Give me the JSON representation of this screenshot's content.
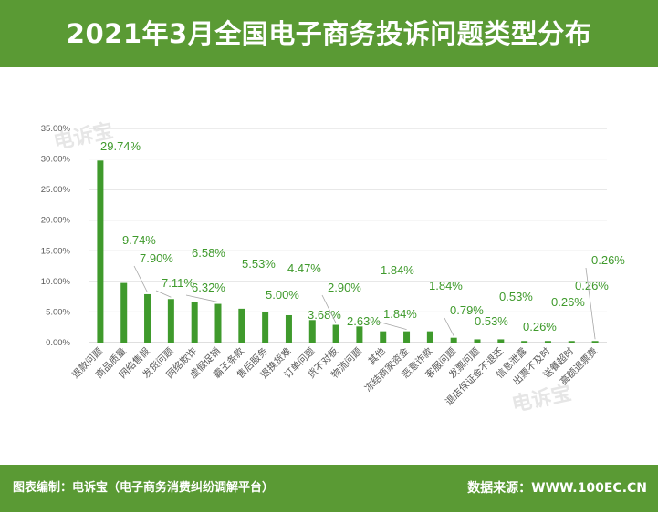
{
  "title": "2021年3月全国电子商务投诉问题类型分布",
  "footer": {
    "left": "图表编制：电诉宝（电子商务消费纠纷调解平台）",
    "right": "数据来源：WWW.100EC.CN"
  },
  "watermark": "电诉宝",
  "colors": {
    "bar": "#3f9a2c",
    "label": "#3f9a2c",
    "header": "#5a9a34",
    "grid": "#d9d9d9"
  },
  "chart_data": {
    "type": "bar",
    "categories": [
      "退款问题",
      "商品质量",
      "网络售假",
      "发货问题",
      "网络欺诈",
      "虚假促销",
      "霸王条款",
      "售后服务",
      "退换货难",
      "订单问题",
      "货不对板",
      "物流问题",
      "其他",
      "冻结商家资金",
      "恶意诈款",
      "客服问题",
      "发票问题",
      "退店保证金不退还",
      "信息泄露",
      "出票不及时",
      "送餐超时",
      "高额退票费"
    ],
    "values": [
      29.74,
      9.74,
      7.9,
      7.11,
      6.58,
      6.32,
      5.53,
      5.0,
      4.47,
      3.68,
      2.9,
      2.63,
      1.84,
      1.84,
      1.84,
      0.79,
      0.53,
      0.53,
      0.26,
      0.26,
      0.26,
      0.26
    ],
    "data_labels": [
      "29.74%",
      "9.74%",
      "7.90%",
      "7.11%",
      "6.58%",
      "6.32%",
      "5.53%",
      "5.00%",
      "4.47%",
      "3.68%",
      "2.90%",
      "2.63%",
      "1.84%",
      "1.84%",
      "1.84%",
      "0.79%",
      "0.53%",
      "0.53%",
      "0.26%",
      "0.26%",
      "0.26%",
      "0.26%"
    ],
    "y_ticks": [
      "0.00%",
      "5.00%",
      "10.00%",
      "15.00%",
      "20.00%",
      "25.00%",
      "30.00%",
      "35.00%"
    ],
    "ylim": [
      0,
      35
    ],
    "grid": true,
    "title": "",
    "xlabel": "",
    "ylabel": ""
  }
}
